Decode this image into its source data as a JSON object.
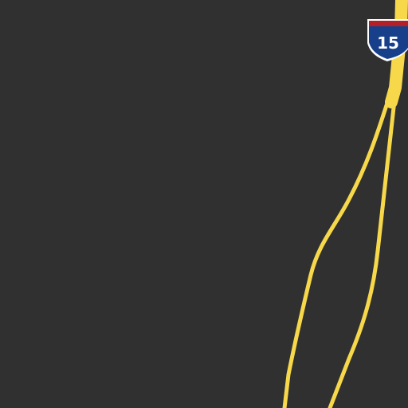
{
  "map": {
    "theme": "dark",
    "background_color": "#303030",
    "road_color": "#f7d84a",
    "road_segments": [
      {
        "kind": "interstate",
        "route": "15"
      },
      {
        "kind": "interstate-branch-west"
      },
      {
        "kind": "interstate-branch-east"
      }
    ],
    "shields": [
      {
        "type": "interstate",
        "number": "15",
        "colors": {
          "top": "#b32028",
          "body": "#173f8a",
          "border": "#ffffff",
          "text": "#ffffff"
        }
      }
    ]
  }
}
